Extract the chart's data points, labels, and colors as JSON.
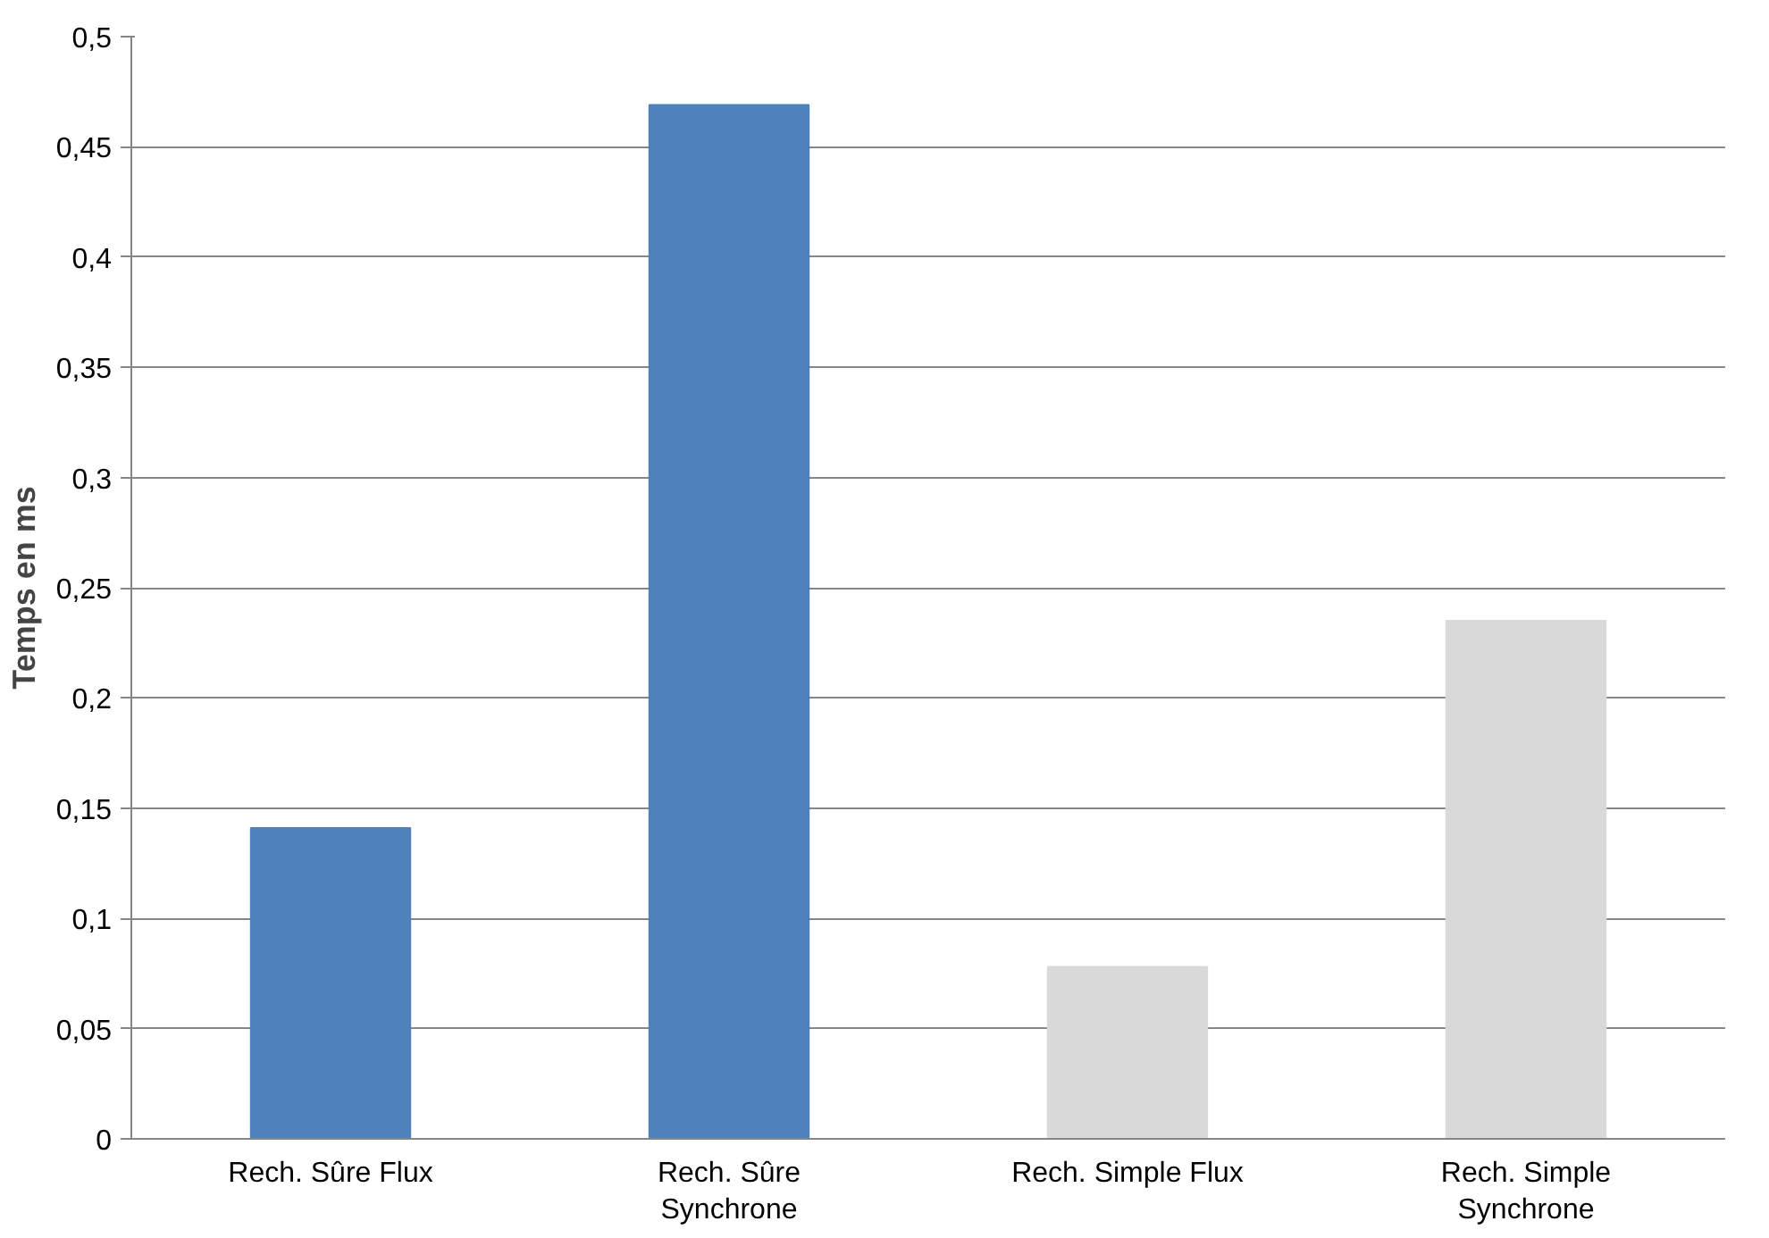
{
  "chart_data": {
    "type": "bar",
    "ylabel": "Temps en ms",
    "categories": [
      "Rech. Sûre Flux",
      "Rech. Sûre Synchrone",
      "Rech. Simple Flux",
      "Rech. Simple Synchrone"
    ],
    "values": [
      0.141,
      0.469,
      0.078,
      0.235
    ],
    "colors": [
      "#4f81bd",
      "#4f81bd",
      "#d9d9d9",
      "#d9d9d9"
    ],
    "ylim": [
      0,
      0.5
    ],
    "yticks": [
      {
        "value": 0,
        "label": "0"
      },
      {
        "value": 0.05,
        "label": "0,05"
      },
      {
        "value": 0.1,
        "label": "0,1"
      },
      {
        "value": 0.15,
        "label": "0,15"
      },
      {
        "value": 0.2,
        "label": "0,2"
      },
      {
        "value": 0.25,
        "label": "0,25"
      },
      {
        "value": 0.3,
        "label": "0,3"
      },
      {
        "value": 0.35,
        "label": "0,35"
      },
      {
        "value": 0.4,
        "label": "0,4"
      },
      {
        "value": 0.45,
        "label": "0,45"
      },
      {
        "value": 0.5,
        "label": "0,5"
      }
    ],
    "grid": "y"
  }
}
